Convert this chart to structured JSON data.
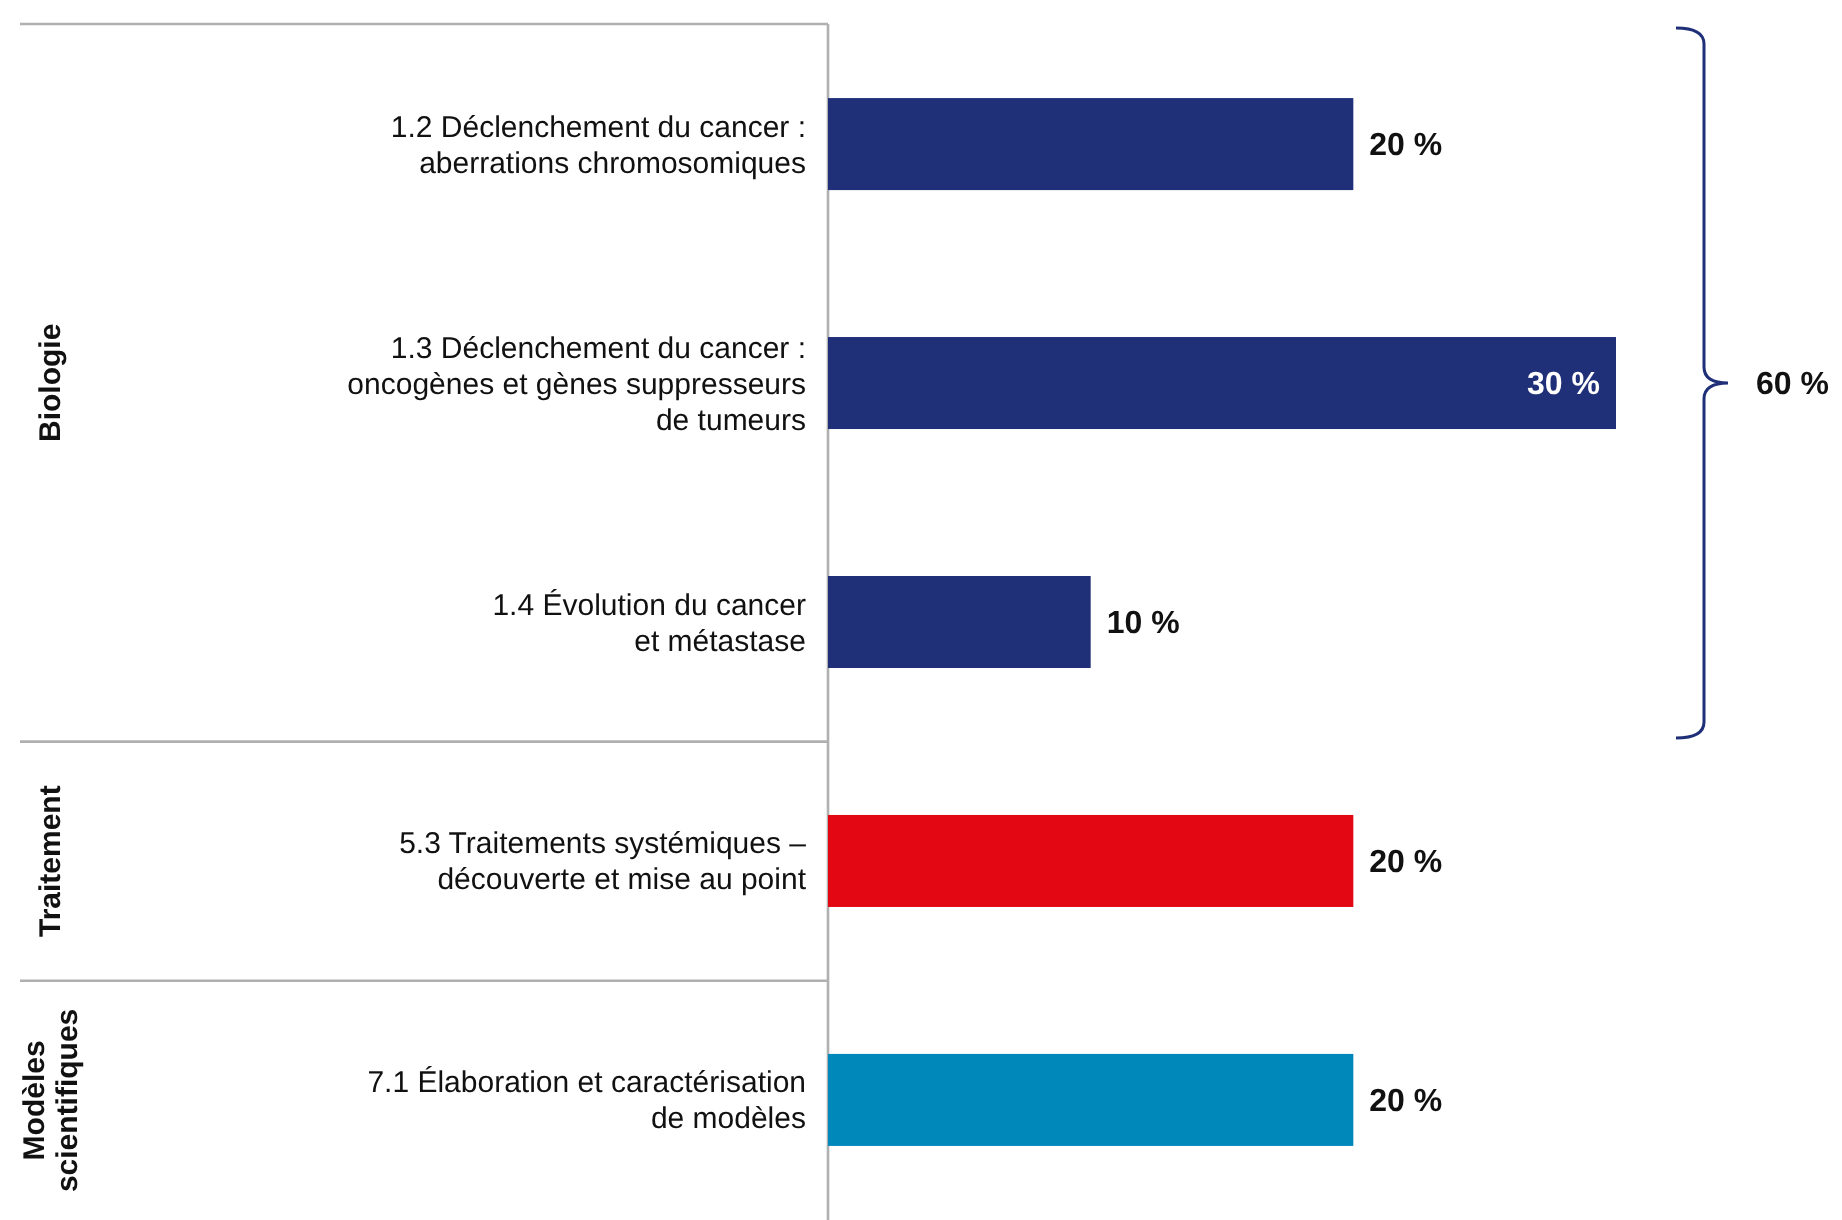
{
  "chart_data": {
    "type": "bar",
    "orientation": "horizontal",
    "categories": [
      "1.2 Déclenchement du cancer :\naberrations chromosomiques",
      "1.3 Déclenchement du cancer :\noncogènes et gènes suppresseurs\nde tumeurs",
      "1.4 Évolution du cancer\net métastase",
      "5.3 Traitements systémiques –\ndécouverte et mise au point",
      "7.1 Élaboration et caractérisation\nde modèles"
    ],
    "values": [
      20,
      30,
      10,
      20,
      20
    ],
    "colors": [
      "#1f2f78",
      "#1f2f78",
      "#1f2f78",
      "#e30613",
      "#0088bb"
    ],
    "value_labels": [
      "20 %",
      "30 %",
      "10 %",
      "20 %",
      "20 %"
    ],
    "annotations": [
      "Biologie",
      "Traitement",
      "Modèles\nscientifiques",
      "60 %"
    ]
  }
}
